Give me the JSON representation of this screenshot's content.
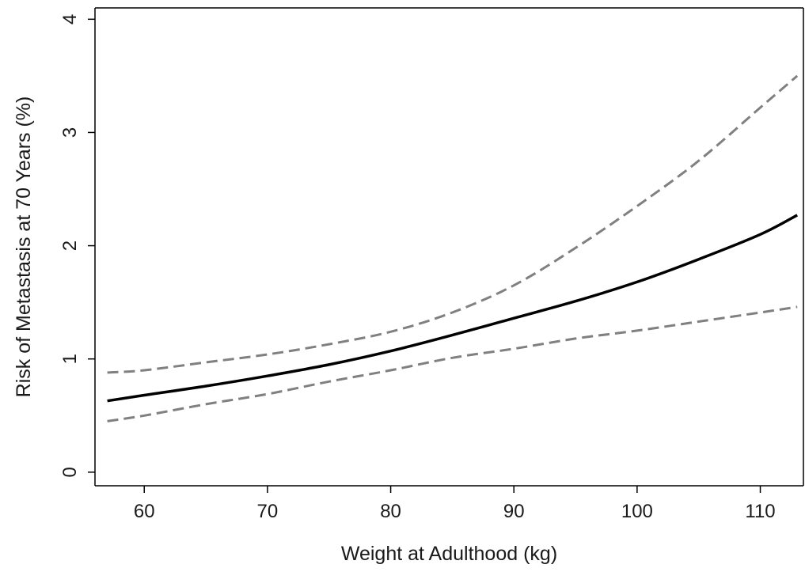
{
  "chart_data": {
    "type": "line",
    "title": "",
    "xlabel": "Weight at Adulthood (kg)",
    "ylabel": "Risk of Metastasis at 70 Years (%)",
    "xlim": [
      56,
      113.5
    ],
    "ylim": [
      -0.12,
      4.1
    ],
    "xticks": [
      60,
      70,
      80,
      90,
      100,
      110
    ],
    "yticks": [
      0,
      1,
      2,
      3,
      4
    ],
    "grid": false,
    "legend": "none",
    "x": [
      57,
      60,
      65,
      70,
      75,
      80,
      85,
      90,
      95,
      100,
      105,
      110,
      113
    ],
    "series": [
      {
        "role": "estimate",
        "style": "solid",
        "color": "#000000",
        "values": [
          0.63,
          0.68,
          0.76,
          0.85,
          0.95,
          1.07,
          1.21,
          1.36,
          1.51,
          1.68,
          1.88,
          2.1,
          2.27
        ]
      },
      {
        "role": "upper-ci",
        "style": "dashed",
        "color": "#808080",
        "values": [
          0.88,
          0.9,
          0.97,
          1.04,
          1.13,
          1.24,
          1.41,
          1.65,
          1.98,
          2.35,
          2.75,
          3.22,
          3.5
        ]
      },
      {
        "role": "lower-ci",
        "style": "dashed",
        "color": "#808080",
        "values": [
          0.45,
          0.5,
          0.6,
          0.69,
          0.8,
          0.9,
          1.01,
          1.09,
          1.18,
          1.25,
          1.33,
          1.41,
          1.46
        ]
      }
    ]
  }
}
